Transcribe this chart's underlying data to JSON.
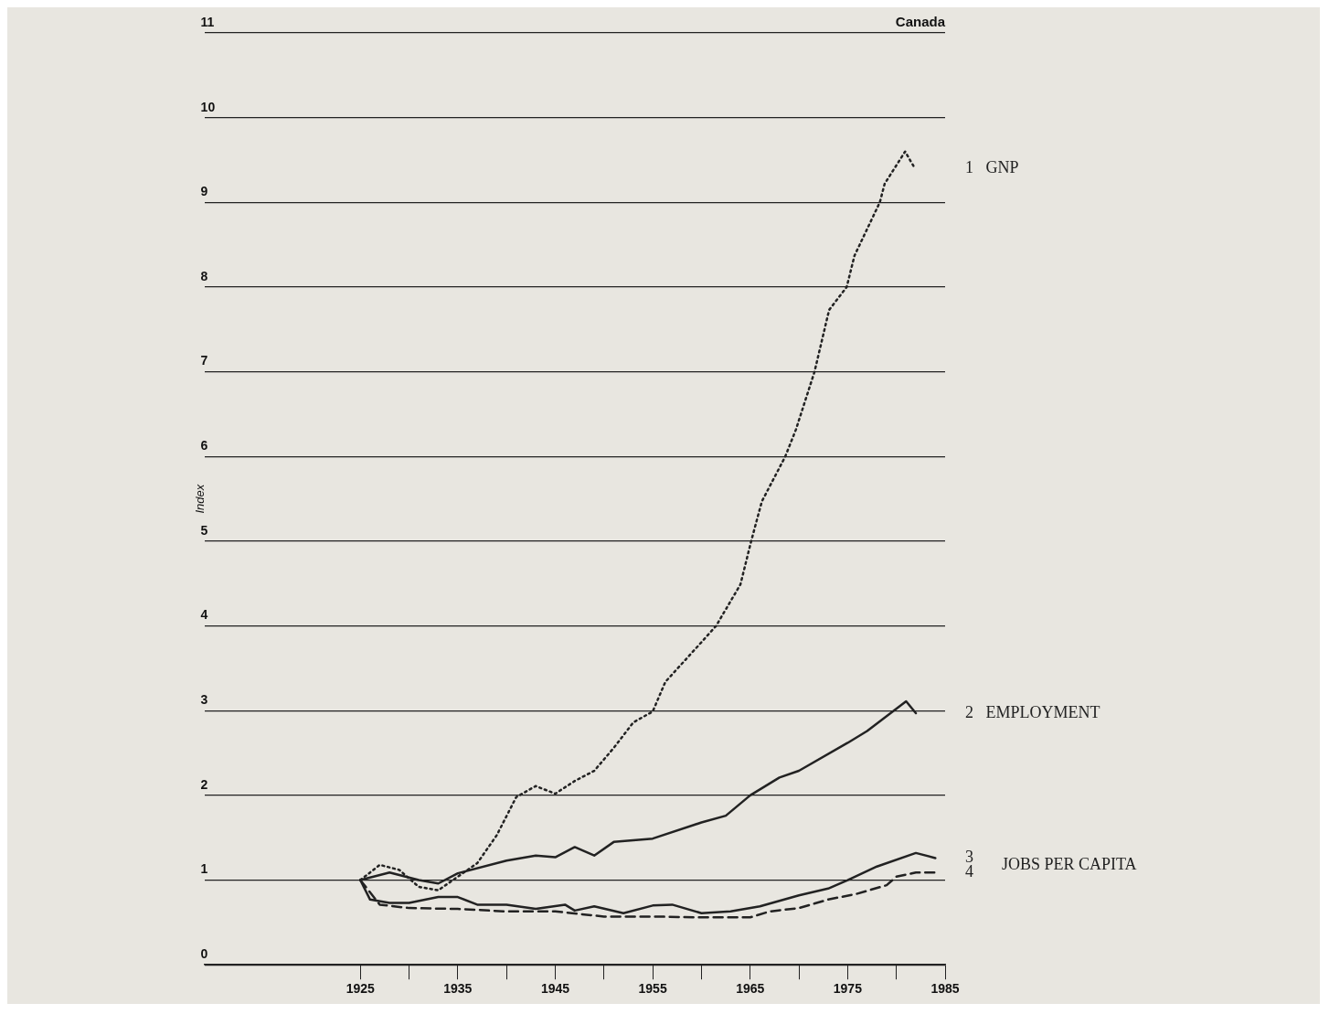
{
  "chart_data": {
    "type": "line",
    "title": "Canada",
    "ylabel": "Index",
    "xlim": [
      1909,
      1985
    ],
    "xticks": [
      1925,
      {
        "value": 1930,
        "label": null
      },
      1935,
      {
        "value": 1940,
        "label": null
      },
      1945,
      {
        "value": 1950,
        "label": null
      },
      1955,
      {
        "value": 1960,
        "label": null
      },
      1965,
      {
        "value": 1970,
        "label": null
      },
      1975,
      {
        "value": 1980,
        "label": null
      },
      1985
    ],
    "ylim": [
      0,
      11
    ],
    "yticks": [
      0,
      1,
      2,
      3,
      4,
      5,
      6,
      7,
      8,
      9,
      10,
      11
    ],
    "grid": "y",
    "legend": false,
    "marker": "none",
    "annotations": [
      "JOBS PER CAPITA"
    ],
    "series": [
      {
        "name": "1   GNP",
        "color": "#222222",
        "line_style": "dotted",
        "x": [
          1925,
          1927,
          1929,
          1931,
          1933,
          1935,
          1937,
          1939,
          1941,
          1943,
          1945,
          1947,
          1949,
          1951,
          1953,
          1955,
          1956.3,
          1959.7,
          1961.5,
          1964,
          1965.1,
          1966.2,
          1968.6,
          1969.7,
          1971.6,
          1973.1,
          1974.9,
          1975.7,
          1978.3,
          1978.8,
          1980.9,
          1981.9
        ],
        "values": [
          1.0,
          1.18,
          1.12,
          0.92,
          0.88,
          1.04,
          1.2,
          1.53,
          1.98,
          2.11,
          2.02,
          2.17,
          2.29,
          2.56,
          2.86,
          2.99,
          3.34,
          3.77,
          4.0,
          4.49,
          5.0,
          5.47,
          6.0,
          6.32,
          7.0,
          7.73,
          8.0,
          8.37,
          9.0,
          9.22,
          9.6,
          9.4
        ]
      },
      {
        "name": "2   EMPLOYMENT",
        "color": "#222222",
        "line_style": "solid",
        "x": [
          1925,
          1928,
          1931,
          1933,
          1935,
          1940,
          1943,
          1945,
          1947,
          1949,
          1951,
          1955,
          1960,
          1962.5,
          1965,
          1968,
          1970,
          1975,
          1977,
          1981,
          1982
        ],
        "values": [
          1.0,
          1.09,
          1.0,
          0.96,
          1.08,
          1.23,
          1.29,
          1.27,
          1.39,
          1.29,
          1.45,
          1.49,
          1.68,
          1.76,
          2.0,
          2.21,
          2.29,
          2.62,
          2.76,
          3.11,
          2.97
        ]
      },
      {
        "name": "3",
        "color": "#222222",
        "line_style": "solid",
        "x": [
          1925,
          1926,
          1928,
          1930,
          1933,
          1935,
          1937,
          1940,
          1943,
          1946,
          1947,
          1949,
          1952,
          1955,
          1957,
          1960,
          1963,
          1966,
          1970,
          1973,
          1975,
          1978,
          1982,
          1984
        ],
        "values": [
          1.0,
          0.77,
          0.73,
          0.73,
          0.8,
          0.8,
          0.71,
          0.71,
          0.66,
          0.71,
          0.64,
          0.69,
          0.61,
          0.7,
          0.71,
          0.61,
          0.63,
          0.69,
          0.82,
          0.9,
          1.0,
          1.16,
          1.32,
          1.26
        ]
      },
      {
        "name": "4",
        "color": "#222222",
        "line_style": "dashed",
        "x": [
          1925,
          1927,
          1930,
          1935,
          1940,
          1945,
          1950,
          1955,
          1960,
          1965,
          1967,
          1970,
          1973,
          1976,
          1979,
          1980,
          1982,
          1984
        ],
        "values": [
          1.0,
          0.71,
          0.67,
          0.66,
          0.63,
          0.63,
          0.57,
          0.57,
          0.56,
          0.56,
          0.63,
          0.67,
          0.77,
          0.84,
          0.94,
          1.04,
          1.09,
          1.09
        ]
      }
    ]
  }
}
